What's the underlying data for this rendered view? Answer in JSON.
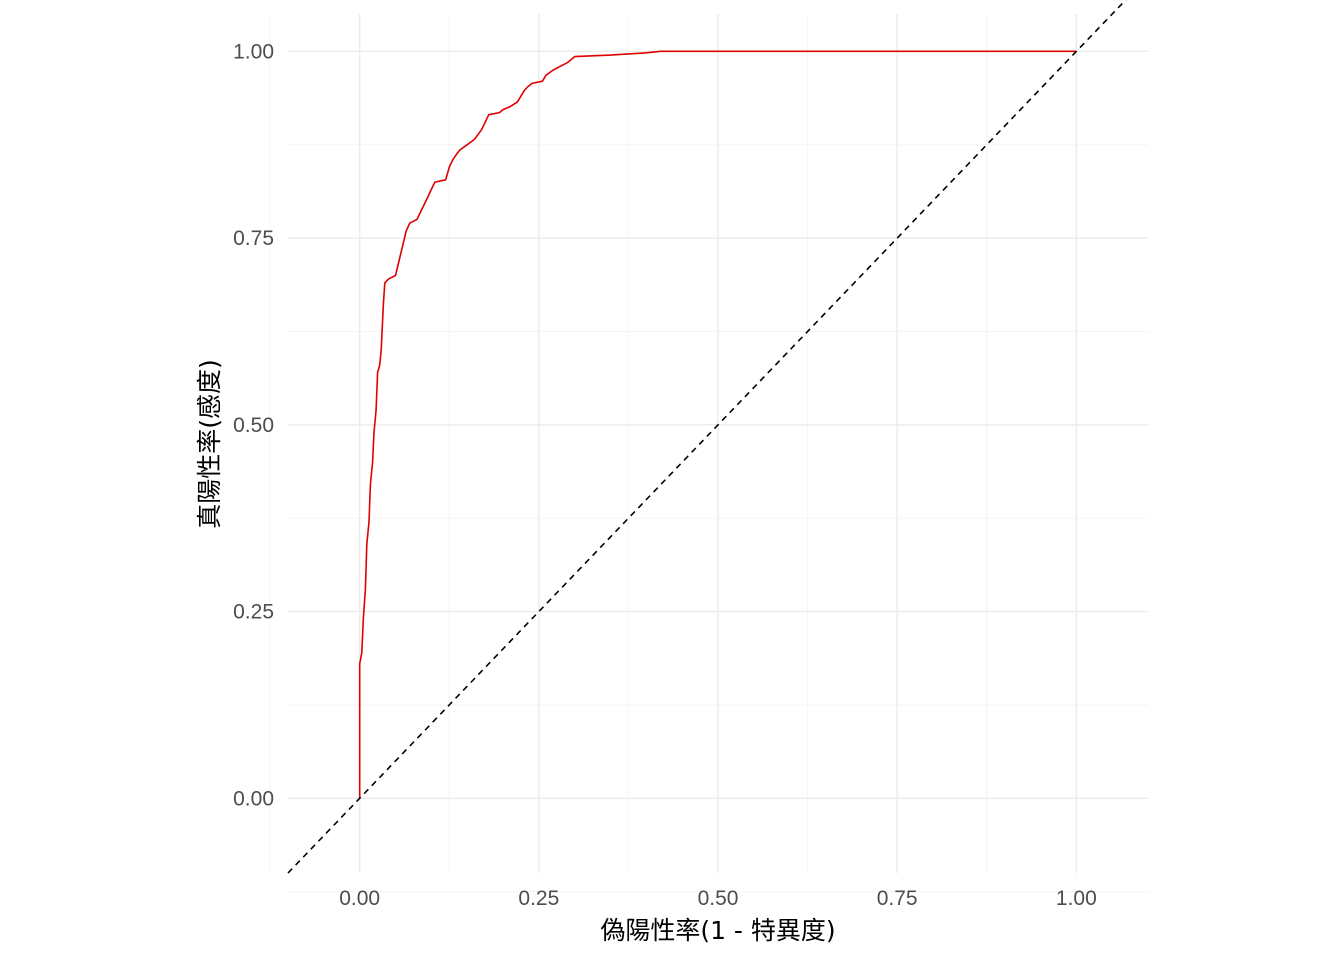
{
  "chart_data": {
    "type": "line",
    "xlabel": "偽陽性率(1 - 特異度)",
    "ylabel": "真陽性率(感度)",
    "xlim": [
      -0.1,
      1.1
    ],
    "ylim": [
      -0.1,
      1.05
    ],
    "x_ticks": [
      "0.00",
      "0.25",
      "0.50",
      "0.75",
      "1.00"
    ],
    "y_ticks": [
      "0.00",
      "0.25",
      "0.50",
      "0.75",
      "1.00"
    ],
    "grid": true,
    "theme": "minimal",
    "colors": {
      "roc": "#e00000",
      "reference": "#000000",
      "grid_major": "#ebebeb",
      "grid_minor": "#f5f5f5"
    },
    "series": [
      {
        "line_style": "solid",
        "points": [
          [
            0.0,
            0.0
          ],
          [
            0.0,
            0.18
          ],
          [
            0.003,
            0.195
          ],
          [
            0.005,
            0.24
          ],
          [
            0.008,
            0.28
          ],
          [
            0.01,
            0.34
          ],
          [
            0.013,
            0.37
          ],
          [
            0.015,
            0.42
          ],
          [
            0.018,
            0.45
          ],
          [
            0.02,
            0.49
          ],
          [
            0.023,
            0.52
          ],
          [
            0.025,
            0.57
          ],
          [
            0.028,
            0.58
          ],
          [
            0.03,
            0.6
          ],
          [
            0.033,
            0.66
          ],
          [
            0.035,
            0.69
          ],
          [
            0.04,
            0.695
          ],
          [
            0.05,
            0.7
          ],
          [
            0.055,
            0.72
          ],
          [
            0.06,
            0.74
          ],
          [
            0.065,
            0.76
          ],
          [
            0.07,
            0.77
          ],
          [
            0.08,
            0.775
          ],
          [
            0.085,
            0.785
          ],
          [
            0.09,
            0.795
          ],
          [
            0.095,
            0.805
          ],
          [
            0.1,
            0.815
          ],
          [
            0.105,
            0.825
          ],
          [
            0.12,
            0.828
          ],
          [
            0.125,
            0.845
          ],
          [
            0.13,
            0.855
          ],
          [
            0.135,
            0.862
          ],
          [
            0.14,
            0.868
          ],
          [
            0.15,
            0.875
          ],
          [
            0.16,
            0.882
          ],
          [
            0.17,
            0.895
          ],
          [
            0.175,
            0.905
          ],
          [
            0.18,
            0.915
          ],
          [
            0.195,
            0.918
          ],
          [
            0.2,
            0.922
          ],
          [
            0.21,
            0.926
          ],
          [
            0.22,
            0.932
          ],
          [
            0.225,
            0.94
          ],
          [
            0.23,
            0.948
          ],
          [
            0.235,
            0.953
          ],
          [
            0.24,
            0.957
          ],
          [
            0.255,
            0.96
          ],
          [
            0.26,
            0.968
          ],
          [
            0.27,
            0.975
          ],
          [
            0.28,
            0.98
          ],
          [
            0.29,
            0.985
          ],
          [
            0.3,
            0.993
          ],
          [
            0.35,
            0.995
          ],
          [
            0.4,
            0.998
          ],
          [
            0.42,
            1.0
          ],
          [
            1.0,
            1.0
          ]
        ]
      },
      {
        "line_style": "dashed",
        "points": [
          [
            -0.1,
            -0.1
          ],
          [
            1.1,
            1.1
          ]
        ]
      }
    ]
  }
}
